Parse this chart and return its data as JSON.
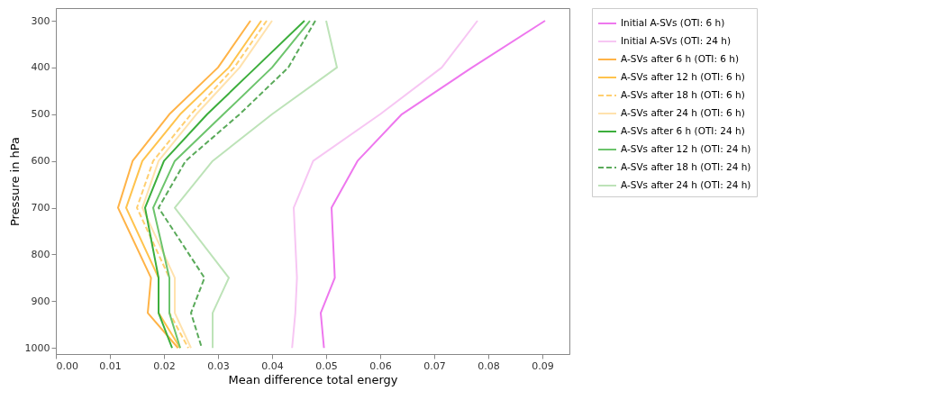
{
  "chart_data": {
    "type": "line",
    "xlabel": "Mean difference total energy",
    "ylabel": "Pressure in hPa",
    "series": [
      {
        "name": "Initial A-SVs (OTI: 6 h)",
        "color": "#ee77ee",
        "line_style": "solid",
        "x": [
          0.0905,
          0.077,
          0.064,
          0.0558,
          0.051,
          0.0516,
          0.049,
          0.0496
        ],
        "values": [
          300,
          400,
          500,
          600,
          700,
          850,
          925,
          1000
        ]
      },
      {
        "name": "Initial A-SVs (OTI: 24 h)",
        "color": "#f7c6f3",
        "line_style": "solid",
        "x": [
          0.078,
          0.0714,
          0.06,
          0.0476,
          0.044,
          0.0446,
          0.0443,
          0.0437
        ],
        "values": [
          300,
          400,
          500,
          600,
          700,
          850,
          925,
          1000
        ]
      },
      {
        "name": "A-SVs after 6 h (OTI: 6 h)",
        "color": "#ffb347",
        "line_style": "solid",
        "x": [
          0.036,
          0.03,
          0.021,
          0.0142,
          0.0115,
          0.0176,
          0.017,
          0.0226
        ],
        "values": [
          300,
          400,
          500,
          600,
          700,
          850,
          925,
          1000
        ]
      },
      {
        "name": "A-SVs after 12 h (OTI: 6 h)",
        "color": "#ffc34d",
        "line_style": "solid",
        "x": [
          0.038,
          0.032,
          0.023,
          0.016,
          0.013,
          0.019,
          0.019,
          0.023
        ],
        "values": [
          300,
          400,
          500,
          600,
          700,
          850,
          925,
          1000
        ]
      },
      {
        "name": "A-SVs after 18 h (OTI: 6 h)",
        "color": "#ffcf70",
        "line_style": "dashed",
        "x": [
          0.039,
          0.033,
          0.025,
          0.018,
          0.015,
          0.021,
          0.021,
          0.0245
        ],
        "values": [
          300,
          400,
          500,
          600,
          700,
          850,
          925,
          1000
        ]
      },
      {
        "name": "A-SVs after 24 h (OTI: 6 h)",
        "color": "#ffe2ad",
        "line_style": "solid",
        "x": [
          0.04,
          0.034,
          0.026,
          0.019,
          0.016,
          0.022,
          0.022,
          0.025
        ],
        "values": [
          300,
          400,
          500,
          600,
          700,
          850,
          925,
          1000
        ]
      },
      {
        "name": "A-SVs after 6 h (OTI: 24 h)",
        "color": "#3cae3c",
        "line_style": "solid",
        "x": [
          0.046,
          0.037,
          0.028,
          0.02,
          0.0165,
          0.019,
          0.019,
          0.0215
        ],
        "values": [
          300,
          400,
          500,
          600,
          700,
          850,
          925,
          1000
        ]
      },
      {
        "name": "A-SVs after 12 h (OTI: 24 h)",
        "color": "#6cc46c",
        "line_style": "solid",
        "x": [
          0.047,
          0.04,
          0.031,
          0.022,
          0.018,
          0.021,
          0.021,
          0.023
        ],
        "values": [
          300,
          400,
          500,
          600,
          700,
          850,
          925,
          1000
        ]
      },
      {
        "name": "A-SVs after 18 h (OTI: 24 h)",
        "color": "#5aaa5a",
        "line_style": "dashed",
        "x": [
          0.048,
          0.043,
          0.034,
          0.024,
          0.019,
          0.0275,
          0.025,
          0.027
        ],
        "values": [
          300,
          400,
          500,
          600,
          700,
          850,
          925,
          1000
        ]
      },
      {
        "name": "A-SVs after 24 h (OTI: 24 h)",
        "color": "#bde3b8",
        "line_style": "solid",
        "x": [
          0.05,
          0.052,
          0.04,
          0.029,
          0.022,
          0.032,
          0.029,
          0.029
        ],
        "values": [
          300,
          400,
          500,
          600,
          700,
          850,
          925,
          1000
        ]
      }
    ],
    "xlim": [
      0,
      0.095
    ],
    "xticks": [
      {
        "value": 0,
        "label": "0.00"
      },
      {
        "value": 0.01,
        "label": "0.01"
      },
      {
        "value": 0.02,
        "label": "0.02"
      },
      {
        "value": 0.03,
        "label": "0.03"
      },
      {
        "value": 0.04,
        "label": "0.04"
      },
      {
        "value": 0.05,
        "label": "0.05"
      },
      {
        "value": 0.06,
        "label": "0.06"
      },
      {
        "value": 0.07,
        "label": "0.07"
      },
      {
        "value": 0.08,
        "label": "0.08"
      },
      {
        "value": 0.09,
        "label": "0.09"
      }
    ],
    "ylim": [
      1013,
      273
    ],
    "yticks": [
      300,
      400,
      500,
      600,
      700,
      800,
      900,
      1000
    ],
    "legend": "right",
    "grid": false,
    "marker": "none"
  }
}
